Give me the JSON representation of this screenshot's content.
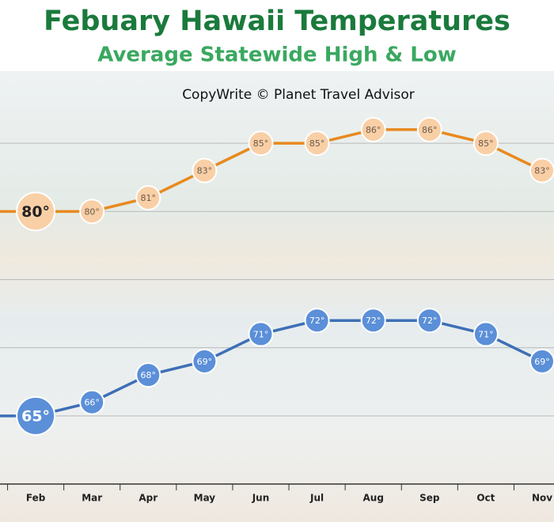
{
  "chart_data": {
    "type": "line",
    "title": "Febuary Hawaii Temperatures",
    "subtitle": "Average Statewide High & Low",
    "annotation": "CopyWrite © Planet Travel Advisor",
    "categories": [
      null,
      "Feb",
      "Mar",
      "Apr",
      "May",
      "Jun",
      "Jul",
      "Aug",
      "Sep",
      "Oct",
      "Nov"
    ],
    "series": [
      {
        "name": "High",
        "color": "#e8891e",
        "values": [
          80,
          80,
          80,
          81,
          83,
          85,
          85,
          86,
          86,
          85,
          83
        ],
        "value_labels": [
          null,
          "80°",
          "80°",
          "81°",
          "83°",
          "85°",
          "85°",
          "86°",
          "86°",
          "85°",
          "83°"
        ]
      },
      {
        "name": "Low",
        "color": "#3d6fb6",
        "values": [
          65,
          65,
          66,
          68,
          69,
          71,
          72,
          72,
          72,
          71,
          69
        ],
        "value_labels": [
          null,
          "65°",
          "66°",
          "68°",
          "69°",
          "71°",
          "72°",
          "72°",
          "72°",
          "71°",
          "69°"
        ]
      }
    ],
    "ylim": [
      60,
      90
    ],
    "yticks": [
      65,
      70,
      75,
      80,
      85
    ],
    "grid": true
  }
}
